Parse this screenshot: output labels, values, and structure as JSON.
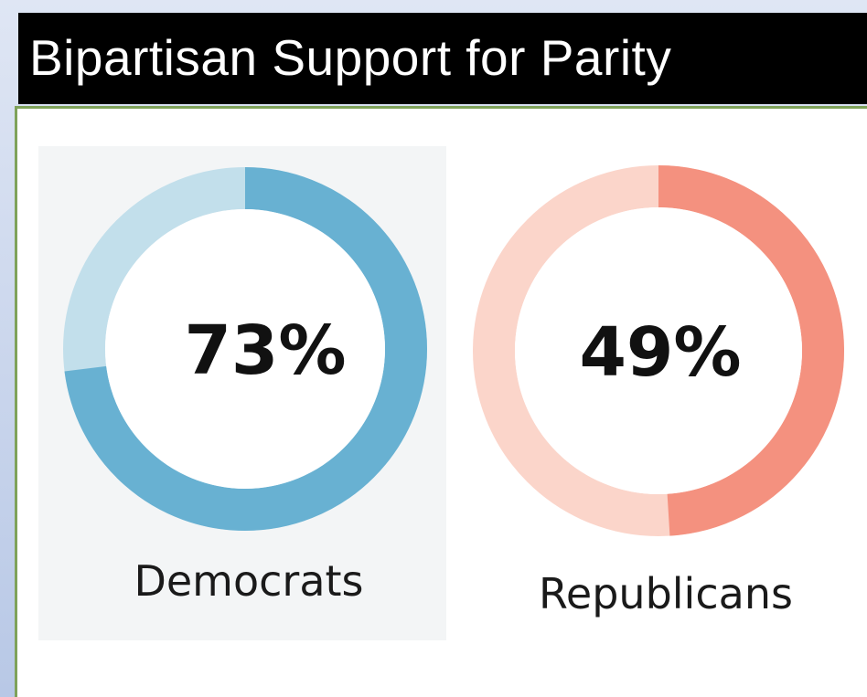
{
  "slide": {
    "title": "Bipartisan Support for Parity"
  },
  "chart_data": {
    "type": "pie",
    "title": "Bipartisan Support for Parity",
    "series": [
      {
        "name": "Democrats",
        "value": 73,
        "value_label": "73%",
        "color": "#68b1d2",
        "track_color": "#c2dfeb"
      },
      {
        "name": "Republicans",
        "value": 49,
        "value_label": "49%",
        "color": "#f4917f",
        "track_color": "#fbd5ca"
      }
    ],
    "style": "donut"
  }
}
